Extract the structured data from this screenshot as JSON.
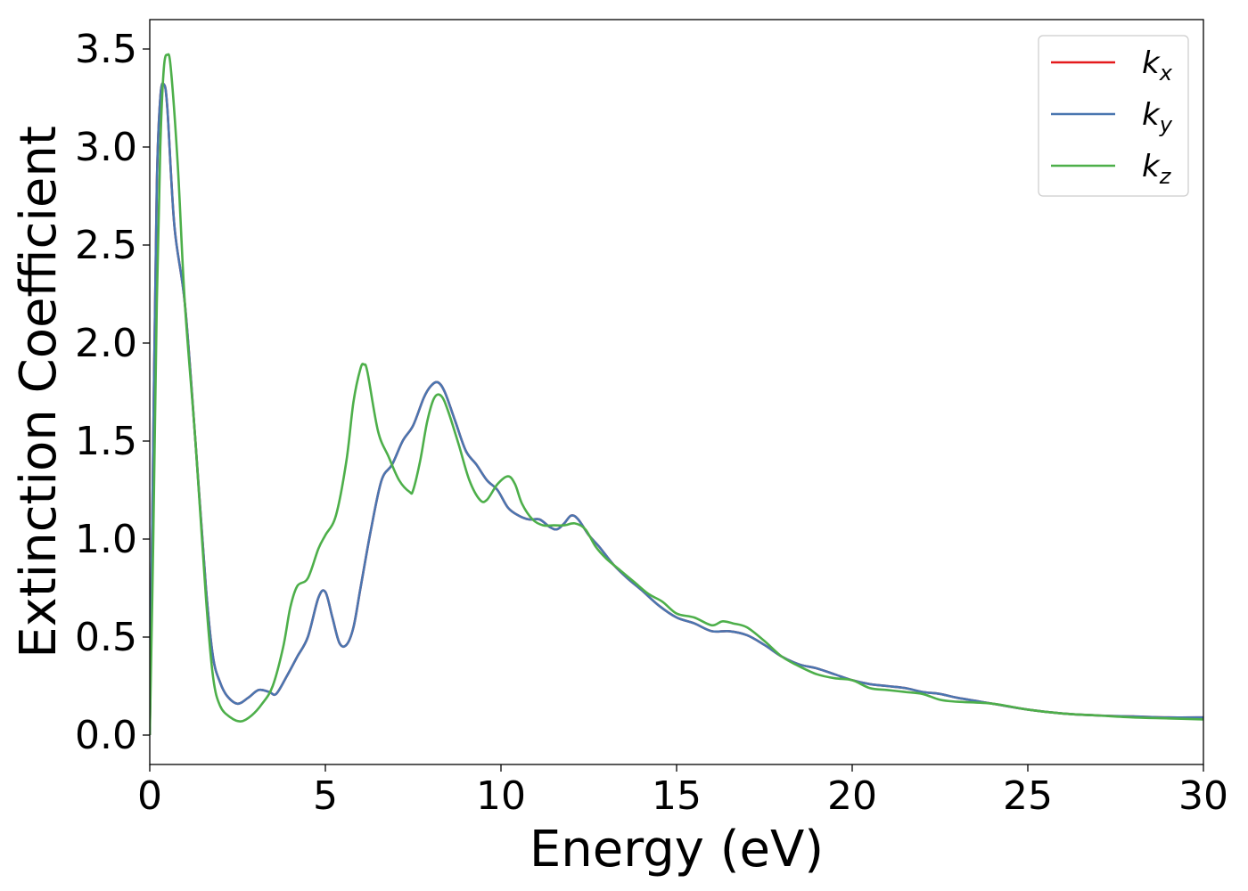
{
  "chart_data": {
    "type": "line",
    "xlabel": "Energy (eV)",
    "ylabel": "Extinction Coefficient",
    "xlim": [
      0,
      30
    ],
    "ylim": [
      -0.15,
      3.65
    ],
    "xticks": [
      0,
      5,
      10,
      15,
      20,
      25,
      30
    ],
    "xtick_labels": [
      "0",
      "5",
      "10",
      "15",
      "20",
      "25",
      "30"
    ],
    "yticks": [
      0.0,
      0.5,
      1.0,
      1.5,
      2.0,
      2.5,
      3.0,
      3.5
    ],
    "ytick_labels": [
      "0.0",
      "0.5",
      "1.0",
      "1.5",
      "2.0",
      "2.5",
      "3.0",
      "3.5"
    ],
    "grid": false,
    "legend_position": "top-right",
    "series": [
      {
        "name": "k",
        "subscript": "x",
        "color": "#e41a1c",
        "x": [
          0,
          0.1,
          0.2,
          0.3,
          0.4,
          0.5,
          0.7,
          1.0,
          1.3,
          1.6,
          1.8,
          2.0,
          2.2,
          2.5,
          2.8,
          3.1,
          3.4,
          3.6,
          3.9,
          4.2,
          4.5,
          4.8,
          5.0,
          5.2,
          5.4,
          5.6,
          5.8,
          6.0,
          6.3,
          6.6,
          6.9,
          7.2,
          7.5,
          7.8,
          8.0,
          8.2,
          8.4,
          8.7,
          9.0,
          9.3,
          9.6,
          9.9,
          10.2,
          10.5,
          10.8,
          11.1,
          11.4,
          11.6,
          11.8,
          12.0,
          12.2,
          12.5,
          12.8,
          13.2,
          13.6,
          14.0,
          14.5,
          15.0,
          15.5,
          16.0,
          16.5,
          17.0,
          17.5,
          18.0,
          18.5,
          19.0,
          19.5,
          20.0,
          20.5,
          21.0,
          21.5,
          22.0,
          22.5,
          23.0,
          24.0,
          25.0,
          26.0,
          27.0,
          28.0,
          29.0,
          30.0
        ],
        "y": [
          0.0,
          1.5,
          2.8,
          3.25,
          3.32,
          3.2,
          2.6,
          2.2,
          1.5,
          0.75,
          0.4,
          0.27,
          0.2,
          0.16,
          0.19,
          0.23,
          0.22,
          0.21,
          0.3,
          0.4,
          0.5,
          0.7,
          0.73,
          0.6,
          0.47,
          0.46,
          0.55,
          0.75,
          1.05,
          1.3,
          1.38,
          1.5,
          1.58,
          1.72,
          1.78,
          1.8,
          1.75,
          1.6,
          1.45,
          1.38,
          1.3,
          1.25,
          1.16,
          1.12,
          1.1,
          1.1,
          1.06,
          1.05,
          1.08,
          1.12,
          1.1,
          1.02,
          0.96,
          0.87,
          0.8,
          0.74,
          0.66,
          0.6,
          0.57,
          0.53,
          0.53,
          0.51,
          0.46,
          0.4,
          0.36,
          0.34,
          0.31,
          0.28,
          0.26,
          0.25,
          0.24,
          0.22,
          0.21,
          0.19,
          0.16,
          0.13,
          0.11,
          0.1,
          0.095,
          0.09,
          0.09
        ]
      },
      {
        "name": "k",
        "subscript": "y",
        "color": "#4a76b0",
        "x": [
          0,
          0.1,
          0.2,
          0.3,
          0.4,
          0.5,
          0.7,
          1.0,
          1.3,
          1.6,
          1.8,
          2.0,
          2.2,
          2.5,
          2.8,
          3.1,
          3.4,
          3.6,
          3.9,
          4.2,
          4.5,
          4.8,
          5.0,
          5.2,
          5.4,
          5.6,
          5.8,
          6.0,
          6.3,
          6.6,
          6.9,
          7.2,
          7.5,
          7.8,
          8.0,
          8.2,
          8.4,
          8.7,
          9.0,
          9.3,
          9.6,
          9.9,
          10.2,
          10.5,
          10.8,
          11.1,
          11.4,
          11.6,
          11.8,
          12.0,
          12.2,
          12.5,
          12.8,
          13.2,
          13.6,
          14.0,
          14.5,
          15.0,
          15.5,
          16.0,
          16.5,
          17.0,
          17.5,
          18.0,
          18.5,
          19.0,
          19.5,
          20.0,
          20.5,
          21.0,
          21.5,
          22.0,
          22.5,
          23.0,
          24.0,
          25.0,
          26.0,
          27.0,
          28.0,
          29.0,
          30.0
        ],
        "y": [
          0.0,
          1.5,
          2.8,
          3.25,
          3.32,
          3.2,
          2.6,
          2.2,
          1.5,
          0.75,
          0.4,
          0.27,
          0.2,
          0.16,
          0.19,
          0.23,
          0.22,
          0.21,
          0.3,
          0.4,
          0.5,
          0.7,
          0.73,
          0.6,
          0.47,
          0.46,
          0.55,
          0.75,
          1.05,
          1.3,
          1.38,
          1.5,
          1.58,
          1.72,
          1.78,
          1.8,
          1.75,
          1.6,
          1.45,
          1.38,
          1.3,
          1.25,
          1.16,
          1.12,
          1.1,
          1.1,
          1.06,
          1.05,
          1.08,
          1.12,
          1.1,
          1.02,
          0.96,
          0.87,
          0.8,
          0.74,
          0.66,
          0.6,
          0.57,
          0.53,
          0.53,
          0.51,
          0.46,
          0.4,
          0.36,
          0.34,
          0.31,
          0.28,
          0.26,
          0.25,
          0.24,
          0.22,
          0.21,
          0.19,
          0.16,
          0.13,
          0.11,
          0.1,
          0.095,
          0.09,
          0.09
        ]
      },
      {
        "name": "k",
        "subscript": "z",
        "color": "#4daf4a",
        "x": [
          0,
          0.1,
          0.2,
          0.3,
          0.4,
          0.5,
          0.6,
          0.8,
          1.0,
          1.3,
          1.6,
          1.8,
          2.0,
          2.3,
          2.6,
          2.9,
          3.2,
          3.5,
          3.8,
          4.0,
          4.2,
          4.5,
          4.8,
          5.0,
          5.3,
          5.6,
          5.8,
          6.0,
          6.1,
          6.2,
          6.5,
          6.8,
          7.1,
          7.4,
          7.5,
          7.7,
          7.9,
          8.1,
          8.3,
          8.5,
          8.8,
          9.1,
          9.4,
          9.6,
          9.9,
          10.2,
          10.4,
          10.6,
          10.9,
          11.2,
          11.5,
          11.8,
          12.1,
          12.4,
          12.7,
          13.0,
          13.4,
          13.8,
          14.2,
          14.6,
          15.0,
          15.5,
          16.0,
          16.3,
          16.6,
          17.0,
          17.5,
          18.0,
          18.5,
          19.0,
          19.5,
          20.0,
          20.5,
          21.0,
          21.5,
          22.0,
          22.5,
          23.0,
          24.0,
          25.0,
          26.0,
          27.0,
          28.0,
          29.0,
          30.0
        ],
        "y": [
          0.0,
          1.0,
          2.2,
          3.0,
          3.4,
          3.47,
          3.4,
          2.9,
          2.2,
          1.5,
          0.7,
          0.3,
          0.15,
          0.09,
          0.07,
          0.1,
          0.16,
          0.25,
          0.45,
          0.65,
          0.76,
          0.8,
          0.95,
          1.02,
          1.12,
          1.4,
          1.7,
          1.87,
          1.89,
          1.85,
          1.55,
          1.42,
          1.3,
          1.24,
          1.25,
          1.4,
          1.6,
          1.72,
          1.73,
          1.65,
          1.48,
          1.3,
          1.2,
          1.2,
          1.28,
          1.32,
          1.28,
          1.18,
          1.1,
          1.07,
          1.07,
          1.07,
          1.08,
          1.05,
          0.96,
          0.9,
          0.84,
          0.78,
          0.72,
          0.68,
          0.62,
          0.6,
          0.56,
          0.58,
          0.57,
          0.55,
          0.48,
          0.4,
          0.35,
          0.31,
          0.29,
          0.28,
          0.24,
          0.23,
          0.22,
          0.21,
          0.18,
          0.17,
          0.16,
          0.13,
          0.11,
          0.1,
          0.09,
          0.085,
          0.08
        ]
      }
    ]
  }
}
